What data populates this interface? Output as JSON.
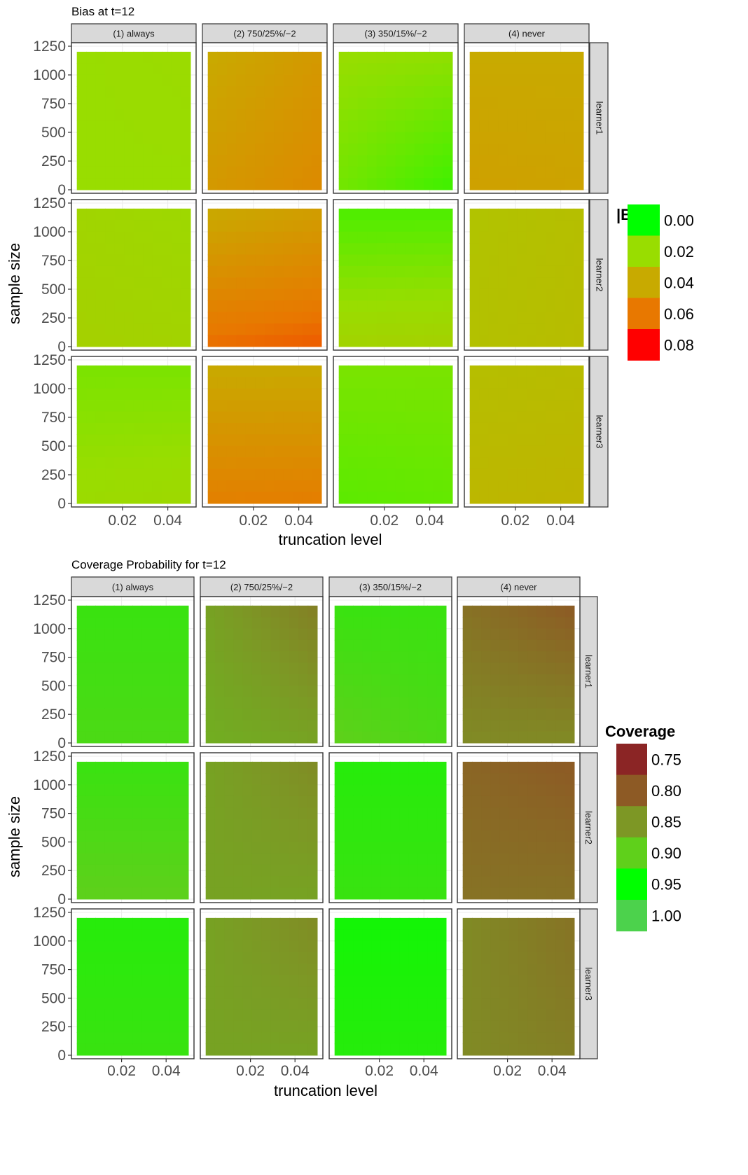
{
  "chart_data": [
    {
      "type": "heatmap",
      "title": "Bias at t=12",
      "xlabel": "truncation level",
      "ylabel": "sample size",
      "x_ticks": [
        0.02,
        0.04
      ],
      "x_tick_labels": [
        "0.02",
        "0.04"
      ],
      "y_ticks": [
        0,
        250,
        500,
        750,
        1000,
        1250
      ],
      "y_tick_labels": [
        "0",
        "250",
        "500",
        "750",
        "1000",
        "1250"
      ],
      "xlim": [
        0.0,
        0.05
      ],
      "ylim": [
        0,
        1250
      ],
      "data_x_range": [
        0.0,
        0.05
      ],
      "data_y_range": [
        0,
        1200
      ],
      "grid": true,
      "columns": [
        "(1) always",
        "(2) 750/25%/−2",
        "(3) 350/15%/−2",
        "(4) never"
      ],
      "rows": [
        "learner1",
        "learner2",
        "learner3"
      ],
      "legend": {
        "title": "|Bias|",
        "position": "right",
        "entries": [
          {
            "label": "0.00",
            "value": 0.0,
            "color": "#00ff00"
          },
          {
            "label": "0.02",
            "value": 0.02,
            "color": "#99dd00"
          },
          {
            "label": "0.04",
            "value": 0.04,
            "color": "#c8aa00"
          },
          {
            "label": "0.06",
            "value": 0.06,
            "color": "#e87800"
          },
          {
            "label": "0.08",
            "value": 0.08,
            "color": "#ff0000"
          }
        ]
      },
      "panels": [
        {
          "row": "learner1",
          "column": "(1) always",
          "corners": {
            "top_left": 0.02,
            "top_right": 0.021,
            "bottom_left": 0.02,
            "bottom_right": 0.02
          }
        },
        {
          "row": "learner1",
          "column": "(2) 750/25%/−2",
          "corners": {
            "top_left": 0.04,
            "top_right": 0.047,
            "bottom_left": 0.047,
            "bottom_right": 0.053
          }
        },
        {
          "row": "learner1",
          "column": "(3) 350/15%/−2",
          "corners": {
            "top_left": 0.02,
            "top_right": 0.019,
            "bottom_left": 0.015,
            "bottom_right": 0.008
          }
        },
        {
          "row": "learner1",
          "column": "(4) never",
          "corners": {
            "top_left": 0.04,
            "top_right": 0.04,
            "bottom_left": 0.044,
            "bottom_right": 0.043
          }
        },
        {
          "row": "learner2",
          "column": "(1) always",
          "corners": {
            "top_left": 0.023,
            "top_right": 0.022,
            "bottom_left": 0.025,
            "bottom_right": 0.024
          }
        },
        {
          "row": "learner2",
          "column": "(2) 750/25%/−2",
          "corners": {
            "top_left": 0.04,
            "top_right": 0.045,
            "bottom_left": 0.062,
            "bottom_right": 0.065
          }
        },
        {
          "row": "learner2",
          "column": "(3) 350/15%/−2",
          "corners": {
            "top_left": 0.01,
            "top_right": 0.01,
            "bottom_left": 0.024,
            "bottom_right": 0.025
          }
        },
        {
          "row": "learner2",
          "column": "(4) never",
          "corners": {
            "top_left": 0.03,
            "top_right": 0.032,
            "bottom_left": 0.031,
            "bottom_right": 0.033
          }
        },
        {
          "row": "learner3",
          "column": "(1) always",
          "corners": {
            "top_left": 0.016,
            "top_right": 0.016,
            "bottom_left": 0.021,
            "bottom_right": 0.022
          }
        },
        {
          "row": "learner3",
          "column": "(2) 750/25%/−2",
          "corners": {
            "top_left": 0.04,
            "top_right": 0.04,
            "bottom_left": 0.057,
            "bottom_right": 0.058
          }
        },
        {
          "row": "learner3",
          "column": "(3) 350/15%/−2",
          "corners": {
            "top_left": 0.016,
            "top_right": 0.016,
            "bottom_left": 0.012,
            "bottom_right": 0.013
          }
        },
        {
          "row": "learner3",
          "column": "(4) never",
          "corners": {
            "top_left": 0.032,
            "top_right": 0.033,
            "bottom_left": 0.035,
            "bottom_right": 0.036
          }
        }
      ]
    },
    {
      "type": "heatmap",
      "title": "Coverage Probability for t=12",
      "xlabel": "truncation level",
      "ylabel": "sample size",
      "x_ticks": [
        0.02,
        0.04
      ],
      "x_tick_labels": [
        "0.02",
        "0.04"
      ],
      "y_ticks": [
        0,
        250,
        500,
        750,
        1000,
        1250
      ],
      "y_tick_labels": [
        "0",
        "250",
        "500",
        "750",
        "1000",
        "1250"
      ],
      "xlim": [
        0.0,
        0.05
      ],
      "ylim": [
        0,
        1250
      ],
      "data_x_range": [
        0.0,
        0.05
      ],
      "data_y_range": [
        0,
        1200
      ],
      "grid": true,
      "columns": [
        "(1) always",
        "(2) 750/25%/−2",
        "(3) 350/15%/−2",
        "(4) never"
      ],
      "rows": [
        "learner1",
        "learner2",
        "learner3"
      ],
      "legend": {
        "title": "Coverage",
        "position": "right",
        "entries": [
          {
            "label": "0.75",
            "value": 0.75,
            "color": "#8b2525"
          },
          {
            "label": "0.80",
            "value": 0.8,
            "color": "#8d5a25"
          },
          {
            "label": "0.85",
            "value": 0.85,
            "color": "#7d9725"
          },
          {
            "label": "0.90",
            "value": 0.9,
            "color": "#5fd01b"
          },
          {
            "label": "0.95",
            "value": 0.95,
            "color": "#00ff00"
          },
          {
            "label": "1.00",
            "value": 1.0,
            "color": "#4cd24c"
          }
        ]
      },
      "panels": [
        {
          "row": "learner1",
          "column": "(1) always",
          "corners": {
            "top_left": 0.92,
            "top_right": 0.92,
            "bottom_left": 0.91,
            "bottom_right": 0.91
          }
        },
        {
          "row": "learner1",
          "column": "(2) 750/25%/−2",
          "corners": {
            "top_left": 0.86,
            "top_right": 0.83,
            "bottom_left": 0.87,
            "bottom_right": 0.86
          }
        },
        {
          "row": "learner1",
          "column": "(3) 350/15%/−2",
          "corners": {
            "top_left": 0.92,
            "top_right": 0.92,
            "bottom_left": 0.9,
            "bottom_right": 0.91
          }
        },
        {
          "row": "learner1",
          "column": "(4) never",
          "corners": {
            "top_left": 0.82,
            "top_right": 0.8,
            "bottom_left": 0.84,
            "bottom_right": 0.84
          }
        },
        {
          "row": "learner2",
          "column": "(1) always",
          "corners": {
            "top_left": 0.92,
            "top_right": 0.92,
            "bottom_left": 0.9,
            "bottom_right": 0.9
          }
        },
        {
          "row": "learner2",
          "column": "(2) 750/25%/−2",
          "corners": {
            "top_left": 0.86,
            "top_right": 0.84,
            "bottom_left": 0.86,
            "bottom_right": 0.86
          }
        },
        {
          "row": "learner2",
          "column": "(3) 350/15%/−2",
          "corners": {
            "top_left": 0.93,
            "top_right": 0.93,
            "bottom_left": 0.92,
            "bottom_right": 0.92
          }
        },
        {
          "row": "learner2",
          "column": "(4) never",
          "corners": {
            "top_left": 0.81,
            "top_right": 0.8,
            "bottom_left": 0.82,
            "bottom_right": 0.82
          }
        },
        {
          "row": "learner3",
          "column": "(1) always",
          "corners": {
            "top_left": 0.93,
            "top_right": 0.93,
            "bottom_left": 0.92,
            "bottom_right": 0.92
          }
        },
        {
          "row": "learner3",
          "column": "(2) 750/25%/−2",
          "corners": {
            "top_left": 0.86,
            "top_right": 0.84,
            "bottom_left": 0.86,
            "bottom_right": 0.86
          }
        },
        {
          "row": "learner3",
          "column": "(3) 350/15%/−2",
          "corners": {
            "top_left": 0.94,
            "top_right": 0.94,
            "bottom_left": 0.93,
            "bottom_right": 0.93
          }
        },
        {
          "row": "learner3",
          "column": "(4) never",
          "corners": {
            "top_left": 0.84,
            "top_right": 0.82,
            "bottom_left": 0.84,
            "bottom_right": 0.83
          }
        }
      ]
    }
  ]
}
